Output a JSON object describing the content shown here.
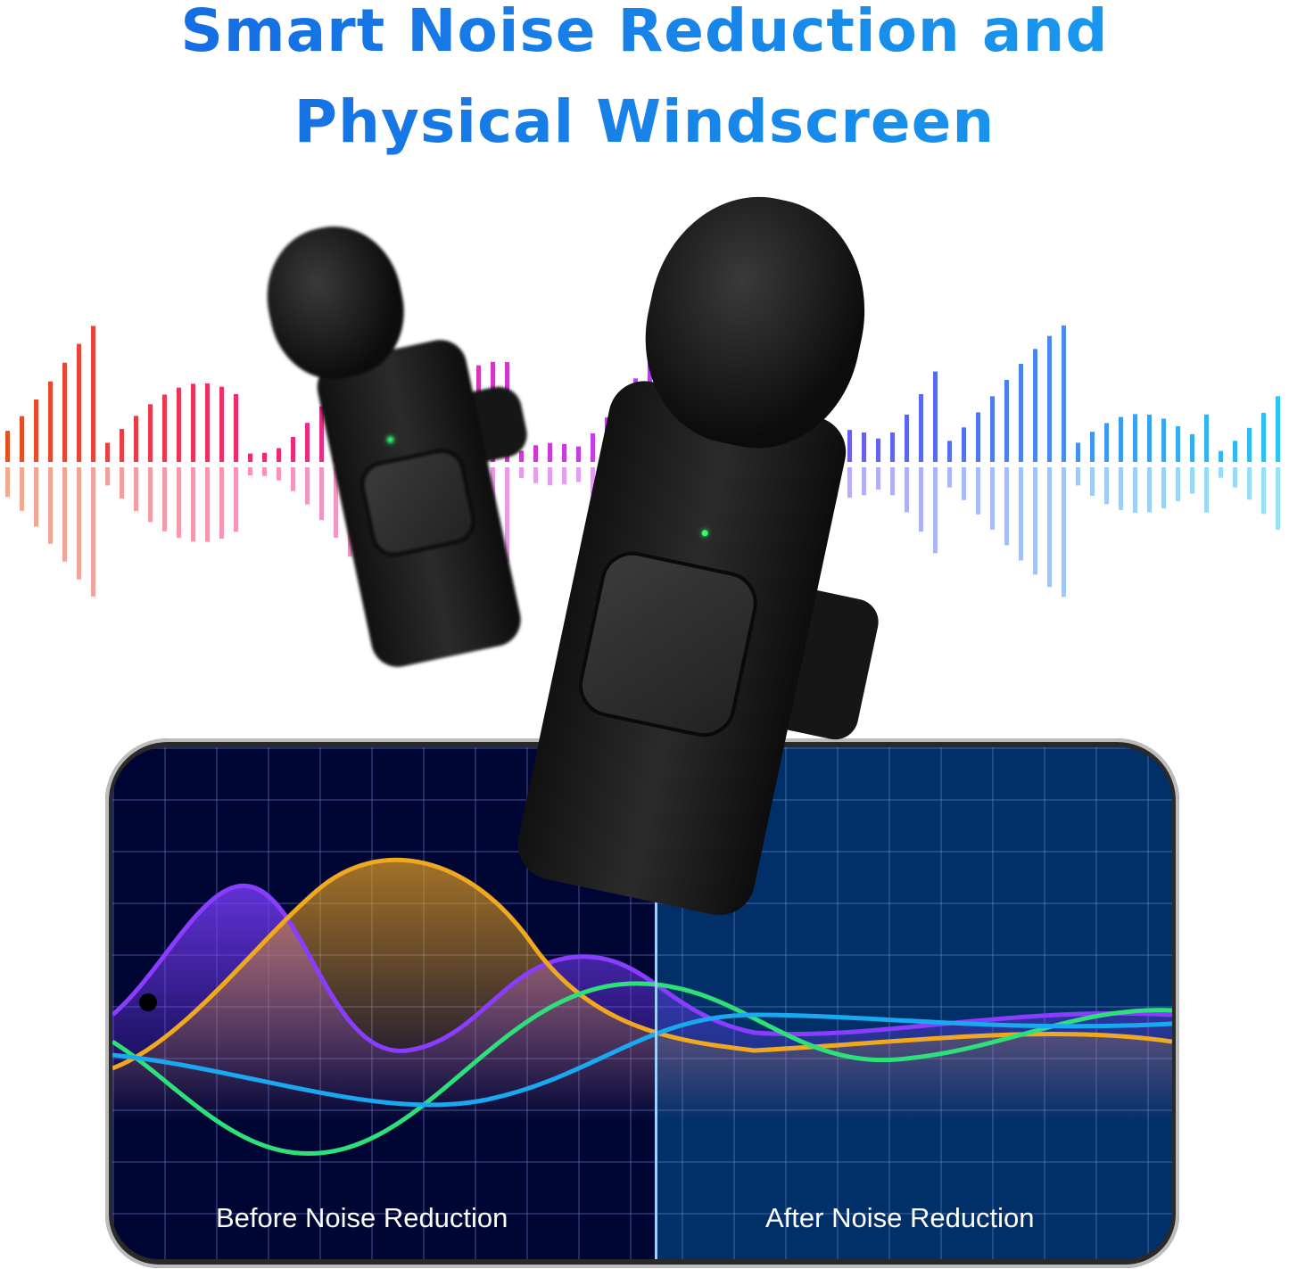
{
  "headline": {
    "line1": "Smart Noise Reduction and",
    "line2": "Physical Windscreen"
  },
  "screen": {
    "before_label": "Before Noise Reduction",
    "after_label": "After Noise Reduction"
  },
  "colors": {
    "title": "#1a8ae6",
    "screen_before": "#000634",
    "screen_after": "#013068",
    "led": "#2eff6a"
  }
}
